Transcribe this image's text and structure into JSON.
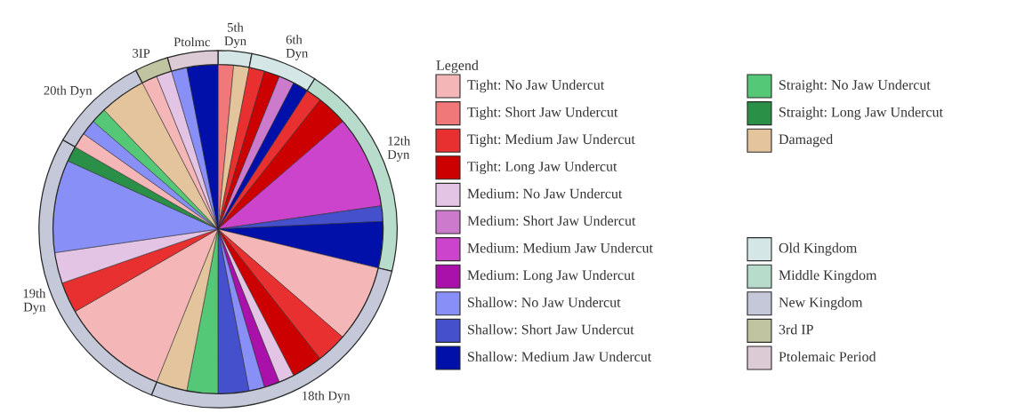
{
  "chart_data": [
    {
      "type": "pie",
      "annotations": [
        "5th\nDyn",
        "6th\nDyn",
        "12th\nDyn",
        "18th Dyn",
        "19th\nDyn",
        "20th Dyn",
        "3IP",
        "Ptolmc"
      ],
      "series": [
        {
          "type": "pie",
          "values": [
            1.52,
            1.52,
            1.52,
            1.52,
            1.52,
            1.52,
            1.52,
            3.03,
            9.09,
            1.52,
            4.55,
            7.58,
            3.03,
            3.03,
            1.52,
            1.52,
            1.52,
            3.03,
            3.03,
            3.03,
            10.61,
            3.03,
            3.03,
            9.09,
            1.52,
            1.52,
            1.52,
            1.52,
            4.55,
            1.52,
            1.52,
            1.52,
            3.03
          ],
          "colors": [
            "#f07878",
            "#e4c49c",
            "#e83030",
            "#cc0000",
            "#cc7acc",
            "#0010a8",
            "#e83030",
            "#cc0000",
            "#cc44cc",
            "#4450cc",
            "#0010a8",
            "#f4b6b6",
            "#e83030",
            "#cc0000",
            "#e4c4e4",
            "#aa10aa",
            "#8890f8",
            "#4450cc",
            "#55c878",
            "#e4c49c",
            "#f4b6b6",
            "#e83030",
            "#e4c4e4",
            "#8890f8",
            "#2a9048",
            "#f4b6b6",
            "#8890f8",
            "#55c878",
            "#e4c49c",
            "#f4b6b6",
            "#e4c4e4",
            "#8890f8",
            "#0010a8"
          ]
        },
        {
          "type": "donut",
          "values": [
            3.03,
            6.06,
            19.7,
            27.27,
            27.27,
            9.09,
            3.03,
            4.55
          ],
          "colors": [
            "#d4e6e6",
            "#d4e6e6",
            "#b8dccc",
            "#c4c8d8",
            "#c4c8d8",
            "#c4c8d8",
            "#c0c4a0",
            "#dccbd4"
          ]
        }
      ]
    },
    {
      "type": "other",
      "title": "Legend",
      "categories": [
        "Tight: No Jaw Undercut",
        "Tight: Short Jaw Undercut",
        "Tight: Medium Jaw Undercut",
        "Tight: Long Jaw Undercut",
        "Medium: No Jaw Undercut",
        "Medium: Short Jaw Undercut",
        "Medium: Medium Jaw Undercut",
        "Medium: Long Jaw Undercut",
        "Shallow: No Jaw Undercut",
        "Shallow: Short Jaw Undercut",
        "Shallow: Medium Jaw Undercut",
        "Straight: No Jaw Undercut",
        "Straight: Long Jaw Undercut",
        "Damaged",
        "Old Kingdom",
        "Middle Kingdom",
        "New Kingdom",
        "3rd IP",
        "Ptolemaic Period"
      ],
      "colors": [
        "#f4b6b6",
        "#f07878",
        "#e83030",
        "#cc0000",
        "#e4c4e4",
        "#cc7acc",
        "#cc44cc",
        "#aa10aa",
        "#8890f8",
        "#4450cc",
        "#0010a8",
        "#55c878",
        "#2a9048",
        "#e4c49c",
        "#d4e6e6",
        "#b8dccc",
        "#c4c8d8",
        "#c0c4a0",
        "#dccbd4"
      ]
    }
  ]
}
